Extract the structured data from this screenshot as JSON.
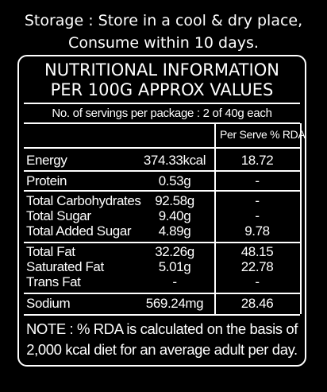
{
  "storage": {
    "line1": "Storage : Store in a cool & dry place,",
    "line2": "Consume within 10 days."
  },
  "nutrition": {
    "title_line1": "NUTRITIONAL INFORMATION",
    "title_line2": "PER 100G APPROX VALUES",
    "servings": "No. of servings per package : 2 of 40g each",
    "column_header": "Per Serve % RDA",
    "rows": [
      {
        "label": "Energy",
        "amount": "374.33kcal",
        "rda": "18.72"
      },
      {
        "label": "Protein",
        "amount": "0.53g",
        "rda": "-"
      },
      {
        "label": "Total Carbohydrates",
        "amount": "92.58g",
        "rda": "-"
      },
      {
        "label": "Total Sugar",
        "amount": "9.40g",
        "rda": "-"
      },
      {
        "label": "Total Added Sugar",
        "amount": "4.89g",
        "rda": "9.78"
      },
      {
        "label": "Total Fat",
        "amount": "32.26g",
        "rda": "48.15"
      },
      {
        "label": "Saturated Fat",
        "amount": "5.01g",
        "rda": "22.78"
      },
      {
        "label": "Trans Fat",
        "amount": "-",
        "rda": "-"
      },
      {
        "label": "Sodium",
        "amount": "569.24mg",
        "rda": "28.46"
      }
    ],
    "note_line1": "NOTE : % RDA is calculated on the basis of",
    "note_line2": "2,000 kcal diet for an average adult per day."
  }
}
